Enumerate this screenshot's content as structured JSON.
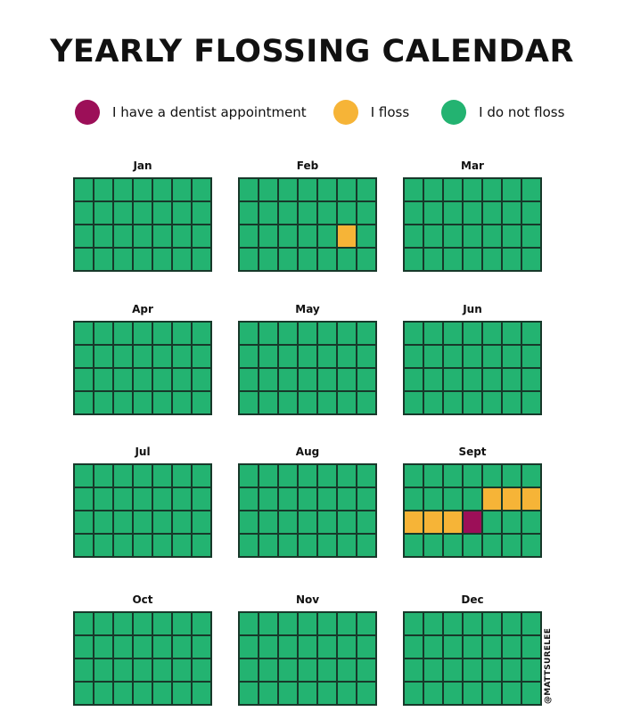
{
  "title": "YEARLY FLOSSING CALENDAR",
  "colors": {
    "d": "#9c0f58",
    "f": "#f6b437",
    "n": "#23b371"
  },
  "legend": [
    {
      "key": "d",
      "label": "I have a dentist appointment"
    },
    {
      "key": "f",
      "label": "I floss"
    },
    {
      "key": "n",
      "label": "I do not floss"
    }
  ],
  "months": [
    {
      "label": "Jan",
      "cells": [
        "nnnnnnn",
        "nnnnnnn",
        "nnnnnnn",
        "nnnnnnn"
      ]
    },
    {
      "label": "Feb",
      "cells": [
        "nnnnnnn",
        "nnnnnnn",
        "nnnnnfn",
        "nnnnnnn"
      ]
    },
    {
      "label": "Mar",
      "cells": [
        "nnnnnnn",
        "nnnnnnn",
        "nnnnnnn",
        "nnnnnnn"
      ]
    },
    {
      "label": "Apr",
      "cells": [
        "nnnnnnn",
        "nnnnnnn",
        "nnnnnnn",
        "nnnnnnn"
      ]
    },
    {
      "label": "May",
      "cells": [
        "nnnnnnn",
        "nnnnnnn",
        "nnnnnnn",
        "nnnnnnn"
      ]
    },
    {
      "label": "Jun",
      "cells": [
        "nnnnnnn",
        "nnnnnnn",
        "nnnnnnn",
        "nnnnnnn"
      ]
    },
    {
      "label": "Jul",
      "cells": [
        "nnnnnnn",
        "nnnnnnn",
        "nnnnnnn",
        "nnnnnnn"
      ]
    },
    {
      "label": "Aug",
      "cells": [
        "nnnnnnn",
        "nnnnnnn",
        "nnnnnnn",
        "nnnnnnn"
      ]
    },
    {
      "label": "Sept",
      "cells": [
        "nnnnnnn",
        "nnnnfff",
        "fffdnnn",
        "nnnnnnn"
      ]
    },
    {
      "label": "Oct",
      "cells": [
        "nnnnnnn",
        "nnnnnnn",
        "nnnnnnn",
        "nnnnnnn"
      ]
    },
    {
      "label": "Nov",
      "cells": [
        "nnnnnnn",
        "nnnnnnn",
        "nnnnnnn",
        "nnnnnnn"
      ]
    },
    {
      "label": "Dec",
      "cells": [
        "nnnnnnn",
        "nnnnnnn",
        "nnnnnnn",
        "nnnnnnn"
      ]
    }
  ],
  "watermark": "@MATTSURELEE"
}
